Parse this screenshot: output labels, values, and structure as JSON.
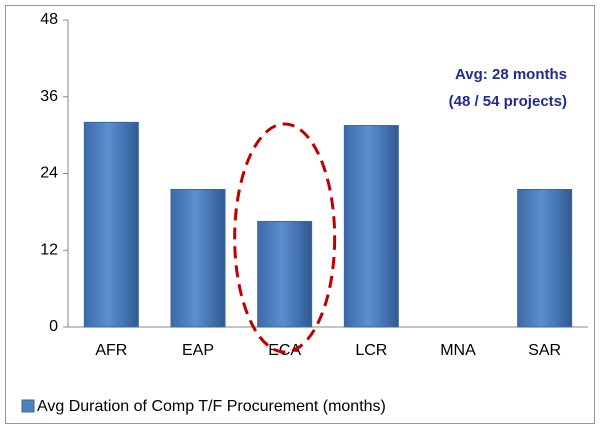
{
  "chart_data": {
    "type": "bar",
    "categories": [
      "AFR",
      "EAP",
      "ECA",
      "LCR",
      "MNA",
      "SAR"
    ],
    "series": [
      {
        "name": "Avg Duration of Comp T/F Procurement (months)",
        "color": "#4f81bd",
        "values": [
          32,
          21.5,
          16.5,
          31.5,
          null,
          21.5
        ]
      }
    ],
    "ylim": [
      0,
      48
    ],
    "yticks": [
      0,
      12,
      24,
      36,
      48
    ],
    "grid": false,
    "annotations": [
      "Avg: 28 months",
      "(48 / 54 projects)"
    ],
    "legend": "bottom"
  }
}
